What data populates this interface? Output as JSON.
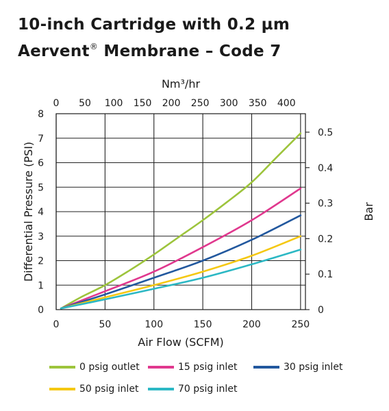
{
  "title": {
    "line1": "10-inch Cartridge with 0.2 µm",
    "line2_main": "Aervent",
    "line2_sup": "®",
    "line2_rest": " Membrane – Code 7"
  },
  "chart_data": {
    "type": "line",
    "xlabel": "Air Flow (SCFM)",
    "ylabel": "Differential Pressure (PSI)",
    "x2label": "Nm³/hr",
    "y2label": "Bar",
    "xlim": [
      0,
      255
    ],
    "ylim": [
      0,
      8
    ],
    "x2lim": [
      0,
      433
    ],
    "y2lim": [
      0,
      0.552
    ],
    "xticks": [
      0,
      50,
      100,
      150,
      200,
      250
    ],
    "yticks": [
      0,
      1,
      2,
      3,
      4,
      5,
      6,
      7,
      8
    ],
    "x2ticks": [
      0,
      50,
      100,
      150,
      200,
      250,
      300,
      350,
      400
    ],
    "y2ticks": [
      "0",
      "0.1",
      "0.2",
      "0.3",
      "0.4",
      "0.5"
    ],
    "grid": true,
    "legend_position": "bottom",
    "series": [
      {
        "name": "0 psig outlet",
        "color": "#9dc43c",
        "x": [
          5,
          25,
          50,
          75,
          100,
          125,
          150,
          175,
          200,
          225,
          250
        ],
        "y": [
          0.05,
          0.5,
          1.0,
          1.6,
          2.25,
          2.95,
          3.65,
          4.4,
          5.2,
          6.2,
          7.2
        ]
      },
      {
        "name": "15 psig inlet",
        "color": "#e0388e",
        "x": [
          5,
          50,
          100,
          150,
          200,
          250
        ],
        "y": [
          0.05,
          0.75,
          1.55,
          2.55,
          3.65,
          4.95
        ]
      },
      {
        "name": "30 psig inlet",
        "color": "#22589e",
        "x": [
          5,
          50,
          100,
          150,
          200,
          250
        ],
        "y": [
          0.05,
          0.62,
          1.3,
          2.0,
          2.85,
          3.85
        ]
      },
      {
        "name": "50 psig inlet",
        "color": "#f5c812",
        "x": [
          5,
          50,
          100,
          150,
          200,
          250
        ],
        "y": [
          0.05,
          0.5,
          1.0,
          1.55,
          2.2,
          3.0
        ]
      },
      {
        "name": "70 psig inlet",
        "color": "#2cb8c4",
        "x": [
          5,
          50,
          100,
          150,
          200,
          250
        ],
        "y": [
          0.05,
          0.42,
          0.85,
          1.3,
          1.85,
          2.45
        ]
      }
    ]
  }
}
